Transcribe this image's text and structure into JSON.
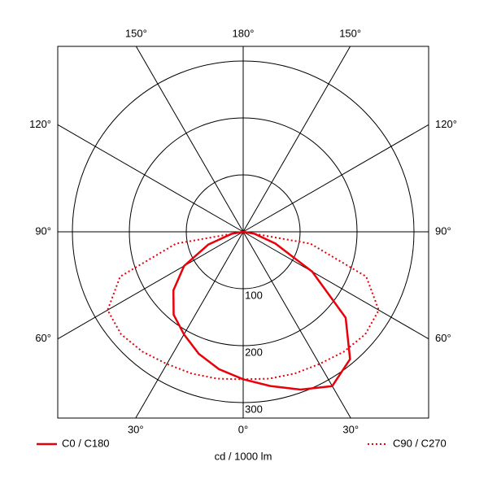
{
  "chart_data": {
    "type": "polar",
    "x_label": "cd / 1000 lm",
    "x": [
      -90,
      -80,
      -70,
      -60,
      -50,
      -40,
      -30,
      -20,
      -10,
      0,
      10,
      20,
      30,
      40,
      50,
      60,
      70,
      80,
      90
    ],
    "series": [
      {
        "name": "C0 / C180",
        "color": "#e8000b",
        "style": "solid",
        "values": [
          0,
          20,
          65,
          120,
          160,
          190,
          208,
          228,
          245,
          259,
          275,
          295,
          313,
          292,
          235,
          140,
          60,
          20,
          0
        ]
      },
      {
        "name": "C90 / C270",
        "color": "#e8000b",
        "style": "dotted",
        "values": [
          0,
          120,
          230,
          275,
          280,
          275,
          268,
          265,
          262,
          259,
          262,
          265,
          268,
          275,
          280,
          275,
          230,
          120,
          0
        ]
      }
    ],
    "rlim": [
      0,
      300
    ],
    "rticks": [
      100,
      200,
      300
    ],
    "angle_ticks": [
      {
        "value": -150,
        "label": "150°"
      },
      {
        "value": 180,
        "label": "180°"
      },
      {
        "value": 150,
        "label": "150°"
      },
      {
        "value": -120,
        "label": "120°"
      },
      {
        "value": 120,
        "label": "120°"
      },
      {
        "value": -90,
        "label": "90°"
      },
      {
        "value": 90,
        "label": "90°"
      },
      {
        "value": -60,
        "label": "60°"
      },
      {
        "value": 60,
        "label": "60°"
      },
      {
        "value": -30,
        "label": "30°"
      },
      {
        "value": 0,
        "label": "0°"
      },
      {
        "value": 30,
        "label": "30°"
      }
    ]
  }
}
